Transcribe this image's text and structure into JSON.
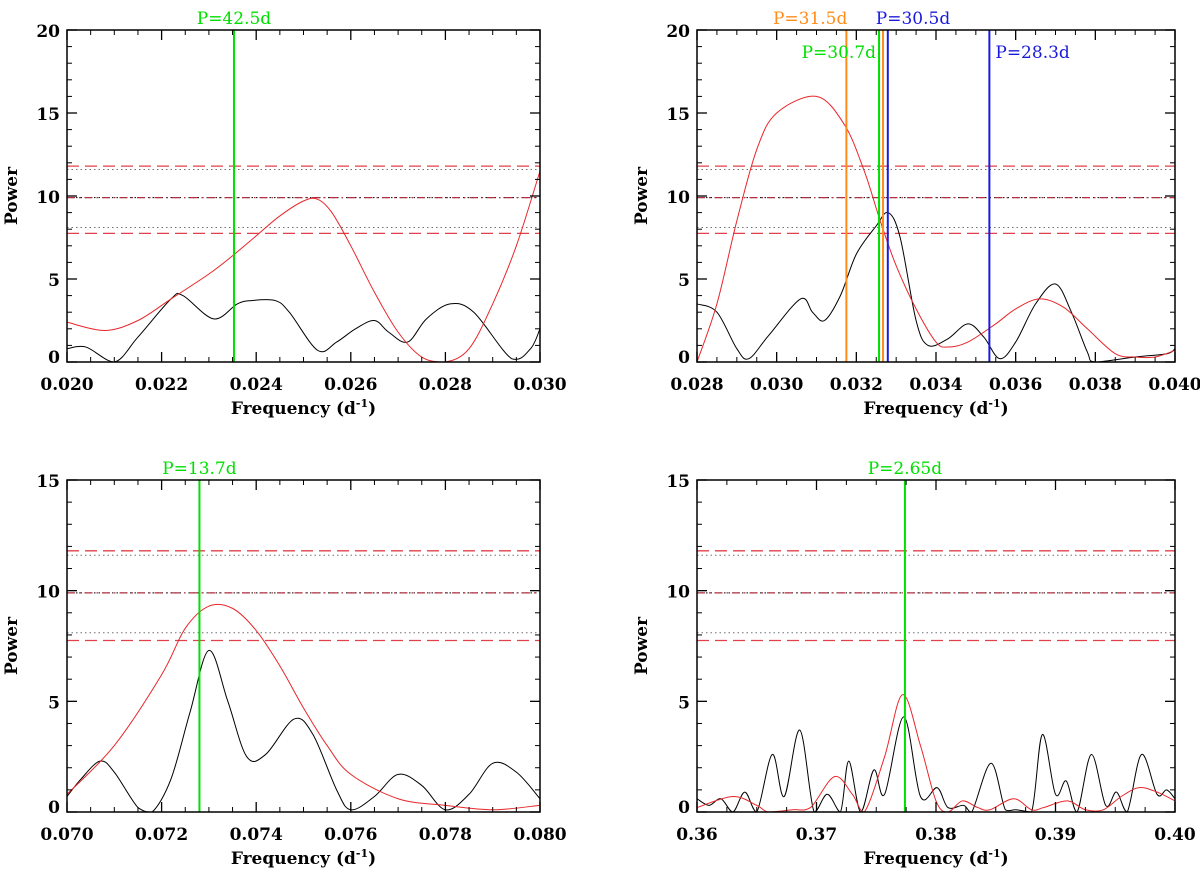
{
  "colors": {
    "black_curve": "#000000",
    "red_curve": "#e8262a",
    "threshold_dashed": "#e0404a",
    "threshold_dotted": "#707070",
    "green": "#00e000",
    "orange": "#ff8c1a",
    "blue": "#1a1adc"
  },
  "chart_data": [
    {
      "type": "line",
      "xlabel": "Frequency (d",
      "xlabel_sup": "-1",
      "xlabel_end": ")",
      "ylabel": "Power",
      "xlim": [
        0.02,
        0.03
      ],
      "ylim": [
        0,
        20
      ],
      "xticks": [
        "0.020",
        "0.022",
        "0.024",
        "0.026",
        "0.028",
        "0.030"
      ],
      "yticks": [
        "0",
        "5",
        "10",
        "15",
        "20"
      ],
      "thresholds": {
        "dashed": [
          11.8,
          9.9,
          7.75
        ],
        "dotted": [
          11.6,
          9.9,
          8.1
        ]
      },
      "series": [
        {
          "color": "black",
          "points": [
            [
              0.02,
              0.8
            ],
            [
              0.0204,
              0.9
            ],
            [
              0.021,
              0.0
            ],
            [
              0.0215,
              1.5
            ],
            [
              0.0222,
              3.8
            ],
            [
              0.02245,
              4.0
            ],
            [
              0.0231,
              2.6
            ],
            [
              0.0236,
              3.5
            ],
            [
              0.0239,
              3.7
            ],
            [
              0.0244,
              3.7
            ],
            [
              0.0247,
              3.0
            ],
            [
              0.0253,
              0.7
            ],
            [
              0.0257,
              1.2
            ],
            [
              0.0261,
              2.0
            ],
            [
              0.0265,
              2.5
            ],
            [
              0.0268,
              1.8
            ],
            [
              0.0272,
              1.2
            ],
            [
              0.0276,
              2.6
            ],
            [
              0.0281,
              3.5
            ],
            [
              0.0286,
              3.0
            ],
            [
              0.0294,
              0.2
            ],
            [
              0.0298,
              0.8
            ],
            [
              0.03,
              2.0
            ]
          ]
        },
        {
          "color": "red",
          "points": [
            [
              0.02,
              2.4
            ],
            [
              0.0208,
              1.9
            ],
            [
              0.0215,
              2.5
            ],
            [
              0.0222,
              3.8
            ],
            [
              0.023,
              5.3
            ],
            [
              0.0235,
              6.4
            ],
            [
              0.024,
              7.6
            ],
            [
              0.0245,
              8.8
            ],
            [
              0.025,
              9.7
            ],
            [
              0.0253,
              9.8
            ],
            [
              0.0256,
              9.0
            ],
            [
              0.026,
              7.0
            ],
            [
              0.0265,
              4.2
            ],
            [
              0.027,
              1.8
            ],
            [
              0.0275,
              0.3
            ],
            [
              0.028,
              0.0
            ],
            [
              0.0285,
              0.8
            ],
            [
              0.029,
              3.5
            ],
            [
              0.0295,
              7.0
            ],
            [
              0.03,
              11.5
            ]
          ]
        }
      ],
      "markers": [
        {
          "x": 0.02353,
          "color": "green",
          "label": "P=42.5d",
          "label_row": "top"
        }
      ]
    },
    {
      "type": "line",
      "xlabel": "Frequency (d",
      "xlabel_sup": "-1",
      "xlabel_end": ")",
      "ylabel": "Power",
      "xlim": [
        0.028,
        0.04
      ],
      "ylim": [
        0,
        20
      ],
      "xticks": [
        "0.028",
        "0.030",
        "0.032",
        "0.034",
        "0.036",
        "0.038",
        "0.040"
      ],
      "yticks": [
        "0",
        "5",
        "10",
        "15",
        "20"
      ],
      "thresholds": {
        "dashed": [
          11.8,
          9.9,
          7.75
        ],
        "dotted": [
          11.6,
          9.9,
          8.1
        ]
      },
      "series": [
        {
          "color": "black",
          "points": [
            [
              0.028,
              3.5
            ],
            [
              0.0285,
              3.0
            ],
            [
              0.029,
              0.8
            ],
            [
              0.0293,
              0.2
            ],
            [
              0.0298,
              1.6
            ],
            [
              0.0306,
              3.8
            ],
            [
              0.0309,
              3.0
            ],
            [
              0.0312,
              2.5
            ],
            [
              0.0316,
              4.0
            ],
            [
              0.032,
              6.5
            ],
            [
              0.0325,
              8.2
            ],
            [
              0.0328,
              9.0
            ],
            [
              0.0331,
              7.5
            ],
            [
              0.0335,
              2.5
            ],
            [
              0.0338,
              1.0
            ],
            [
              0.0343,
              1.4
            ],
            [
              0.0348,
              2.3
            ],
            [
              0.0352,
              1.5
            ],
            [
              0.0356,
              0.2
            ],
            [
              0.036,
              1.2
            ],
            [
              0.0365,
              3.5
            ],
            [
              0.037,
              4.7
            ],
            [
              0.0374,
              3.0
            ],
            [
              0.0378,
              0.6
            ],
            [
              0.038,
              0.0
            ],
            [
              0.039,
              0.3
            ],
            [
              0.0398,
              0.5
            ],
            [
              0.04,
              0.8
            ]
          ]
        },
        {
          "color": "red",
          "points": [
            [
              0.028,
              0.0
            ],
            [
              0.0285,
              3.5
            ],
            [
              0.029,
              8.5
            ],
            [
              0.0295,
              12.8
            ],
            [
              0.03,
              15.0
            ],
            [
              0.031,
              16.0
            ],
            [
              0.0317,
              14.3
            ],
            [
              0.0322,
              11.5
            ],
            [
              0.0326,
              8.5
            ],
            [
              0.033,
              5.8
            ],
            [
              0.0335,
              3.2
            ],
            [
              0.034,
              1.2
            ],
            [
              0.0343,
              0.9
            ],
            [
              0.0348,
              1.2
            ],
            [
              0.0355,
              2.3
            ],
            [
              0.036,
              3.2
            ],
            [
              0.0366,
              3.8
            ],
            [
              0.0372,
              3.3
            ],
            [
              0.0378,
              2.0
            ],
            [
              0.0385,
              0.5
            ],
            [
              0.039,
              0.3
            ],
            [
              0.0395,
              0.3
            ],
            [
              0.04,
              0.7
            ]
          ]
        }
      ],
      "markers": [
        {
          "x": 0.03175,
          "color": "orange",
          "label": "P=31.5d",
          "label_row": "top"
        },
        {
          "x": 0.03257,
          "color": "green",
          "label": "P=30.7d",
          "label_row": "inner"
        },
        {
          "x": 0.03267,
          "color": "orange",
          "label": "",
          "label_row": "none"
        },
        {
          "x": 0.03279,
          "color": "blue",
          "label": "P=30.5d",
          "label_row": "top"
        },
        {
          "x": 0.03534,
          "color": "blue",
          "label": "P=28.3d",
          "label_row": "inner"
        }
      ]
    },
    {
      "type": "line",
      "xlabel": "Frequency (d",
      "xlabel_sup": "-1",
      "xlabel_end": ")",
      "ylabel": "Power",
      "xlim": [
        0.07,
        0.08
      ],
      "ylim": [
        0,
        15
      ],
      "xticks": [
        "0.070",
        "0.072",
        "0.074",
        "0.076",
        "0.078",
        "0.080"
      ],
      "yticks": [
        "0",
        "5",
        "10",
        "15"
      ],
      "thresholds": {
        "dashed": [
          11.8,
          9.9,
          7.75
        ],
        "dotted": [
          11.6,
          9.9,
          8.1
        ]
      },
      "series": [
        {
          "color": "black",
          "points": [
            [
              0.07,
              0.7
            ],
            [
              0.0703,
              1.5
            ],
            [
              0.0707,
              2.3
            ],
            [
              0.071,
              1.8
            ],
            [
              0.0715,
              0.2
            ],
            [
              0.0718,
              0.0
            ],
            [
              0.0722,
              1.5
            ],
            [
              0.0726,
              4.5
            ],
            [
              0.073,
              7.3
            ],
            [
              0.0734,
              5.0
            ],
            [
              0.0738,
              2.5
            ],
            [
              0.0742,
              2.6
            ],
            [
              0.0748,
              4.2
            ],
            [
              0.0752,
              3.5
            ],
            [
              0.0757,
              1.0
            ],
            [
              0.076,
              0.1
            ],
            [
              0.0765,
              0.7
            ],
            [
              0.077,
              1.7
            ],
            [
              0.0775,
              1.2
            ],
            [
              0.078,
              0.1
            ],
            [
              0.0785,
              0.8
            ],
            [
              0.079,
              2.2
            ],
            [
              0.0795,
              1.8
            ],
            [
              0.08,
              0.6
            ]
          ]
        },
        {
          "color": "red",
          "points": [
            [
              0.07,
              0.8
            ],
            [
              0.071,
              3.0
            ],
            [
              0.072,
              6.2
            ],
            [
              0.0725,
              8.3
            ],
            [
              0.073,
              9.3
            ],
            [
              0.0735,
              9.2
            ],
            [
              0.074,
              8.2
            ],
            [
              0.0745,
              6.6
            ],
            [
              0.075,
              4.7
            ],
            [
              0.0755,
              3.0
            ],
            [
              0.076,
              1.7
            ],
            [
              0.077,
              0.6
            ],
            [
              0.078,
              0.3
            ],
            [
              0.079,
              0.1
            ],
            [
              0.08,
              0.3
            ]
          ]
        }
      ],
      "markers": [
        {
          "x": 0.0728,
          "color": "green",
          "label": "P=13.7d",
          "label_row": "top"
        }
      ]
    },
    {
      "type": "line",
      "xlabel": "Frequency (d",
      "xlabel_sup": "-1",
      "xlabel_end": ")",
      "ylabel": "Power",
      "xlim": [
        0.36,
        0.4
      ],
      "ylim": [
        0,
        15
      ],
      "xticks": [
        "0.36",
        "0.37",
        "0.38",
        "0.39",
        "0.40"
      ],
      "yticks": [
        "0",
        "5",
        "10",
        "15"
      ],
      "thresholds": {
        "dashed": [
          11.8,
          9.9,
          7.75
        ],
        "dotted": [
          11.6,
          9.9,
          8.1
        ]
      },
      "series": [
        {
          "color": "black",
          "points": [
            [
              0.36,
              0.6
            ],
            [
              0.361,
              0.3
            ],
            [
              0.362,
              0.6
            ],
            [
              0.363,
              0.0
            ],
            [
              0.364,
              0.9
            ],
            [
              0.365,
              0.0
            ],
            [
              0.3663,
              2.6
            ],
            [
              0.3673,
              0.7
            ],
            [
              0.3686,
              3.7
            ],
            [
              0.3698,
              0.0
            ],
            [
              0.3709,
              0.8
            ],
            [
              0.372,
              0.0
            ],
            [
              0.3727,
              2.3
            ],
            [
              0.3737,
              0.0
            ],
            [
              0.3748,
              1.9
            ],
            [
              0.3757,
              0.8
            ],
            [
              0.3773,
              4.3
            ],
            [
              0.3787,
              0.7
            ],
            [
              0.3801,
              1.1
            ],
            [
              0.381,
              0.2
            ],
            [
              0.3823,
              0.3
            ],
            [
              0.383,
              0.0
            ],
            [
              0.3846,
              2.2
            ],
            [
              0.3858,
              0.1
            ],
            [
              0.3867,
              0.1
            ],
            [
              0.388,
              0.0
            ],
            [
              0.3889,
              3.5
            ],
            [
              0.39,
              0.8
            ],
            [
              0.3909,
              1.4
            ],
            [
              0.3918,
              0.0
            ],
            [
              0.393,
              2.6
            ],
            [
              0.3942,
              0.3
            ],
            [
              0.3951,
              0.9
            ],
            [
              0.396,
              0.0
            ],
            [
              0.3972,
              2.6
            ],
            [
              0.3985,
              0.8
            ],
            [
              0.3993,
              1.0
            ],
            [
              0.4,
              0.6
            ]
          ]
        },
        {
          "color": "red",
          "points": [
            [
              0.36,
              0.2
            ],
            [
              0.363,
              0.7
            ],
            [
              0.365,
              0.3
            ],
            [
              0.366,
              0.0
            ],
            [
              0.368,
              0.1
            ],
            [
              0.3695,
              0.2
            ],
            [
              0.3715,
              1.6
            ],
            [
              0.373,
              0.8
            ],
            [
              0.374,
              0.0
            ],
            [
              0.3757,
              2.5
            ],
            [
              0.3772,
              5.3
            ],
            [
              0.3787,
              3.0
            ],
            [
              0.38,
              0.5
            ],
            [
              0.381,
              0.0
            ],
            [
              0.3822,
              0.5
            ],
            [
              0.3835,
              0.2
            ],
            [
              0.3845,
              0.1
            ],
            [
              0.3865,
              0.6
            ],
            [
              0.388,
              0.1
            ],
            [
              0.389,
              0.2
            ],
            [
              0.391,
              0.5
            ],
            [
              0.3925,
              0.1
            ],
            [
              0.394,
              0.1
            ],
            [
              0.3955,
              0.7
            ],
            [
              0.397,
              1.1
            ],
            [
              0.3985,
              0.9
            ],
            [
              0.4,
              0.5
            ]
          ]
        }
      ],
      "markers": [
        {
          "x": 0.3774,
          "color": "green",
          "label": "P=2.65d",
          "label_row": "top"
        }
      ]
    }
  ]
}
